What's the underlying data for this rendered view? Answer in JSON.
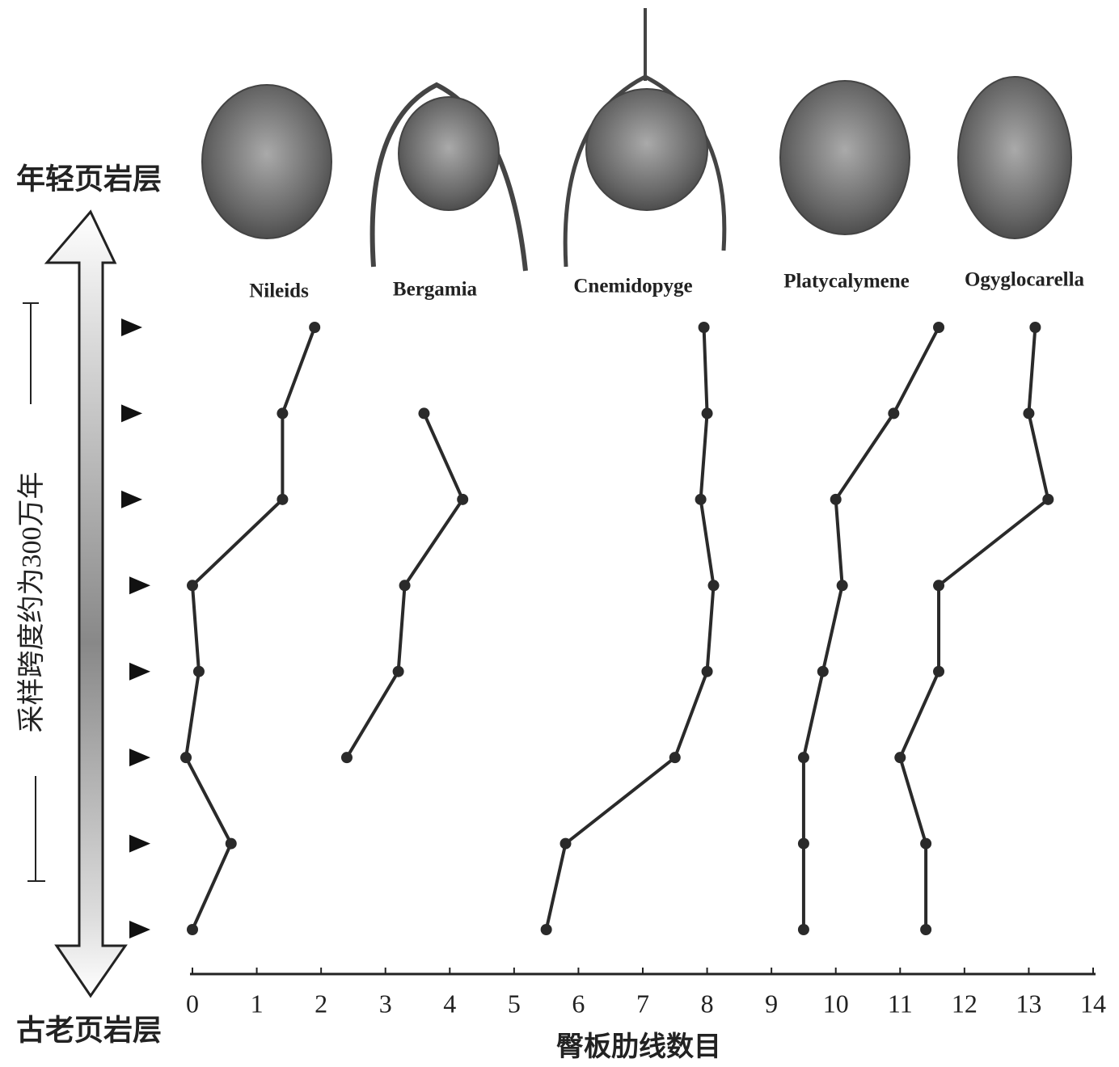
{
  "chart_data": {
    "type": "line",
    "top_label": "年轻页岩层",
    "bottom_label": "古老页岩层",
    "span_label": "采样跨度约为300万年",
    "x_label": "臀板肋线数目",
    "categories": [
      null,
      null,
      null,
      null,
      null,
      null,
      null,
      null
    ],
    "series": [
      {
        "name": "Nileids",
        "color": "#2a2a2a",
        "values": [
          1.9,
          1.4,
          1.4,
          0.0,
          0.1,
          -0.1,
          0.6,
          0.0
        ]
      },
      {
        "name": "Bergamia",
        "color": "#2a2a2a",
        "values": [
          null,
          3.6,
          4.2,
          3.3,
          3.2,
          2.4,
          null,
          null
        ]
      },
      {
        "name": "Cnemidopyge",
        "color": "#2a2a2a",
        "values": [
          7.95,
          8.0,
          7.9,
          8.1,
          8.0,
          7.5,
          5.8,
          5.5
        ]
      },
      {
        "name": "Platycalymene",
        "color": "#2a2a2a",
        "values": [
          11.6,
          10.9,
          10.0,
          10.1,
          9.8,
          9.5,
          9.5,
          9.5
        ]
      },
      {
        "name": "Ogyglocarella",
        "color": "#2a2a2a",
        "values": [
          13.1,
          13.0,
          13.3,
          11.6,
          11.6,
          11.0,
          11.4,
          11.4
        ]
      }
    ],
    "xlim": [
      0,
      14
    ],
    "xticks": [
      0,
      1,
      2,
      3,
      4,
      5,
      6,
      7,
      8,
      9,
      10,
      11,
      12,
      13,
      14
    ]
  }
}
